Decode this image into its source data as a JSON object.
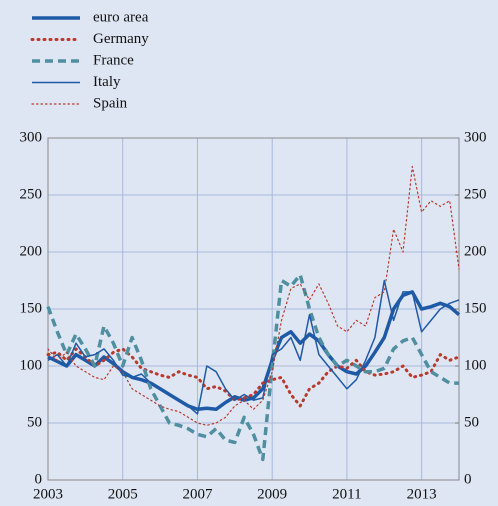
{
  "chart_data": {
    "type": "line",
    "x": [
      2003.0,
      2003.25,
      2003.5,
      2003.75,
      2004.0,
      2004.25,
      2004.5,
      2004.75,
      2005.0,
      2005.25,
      2005.5,
      2005.75,
      2006.0,
      2006.25,
      2006.5,
      2006.75,
      2007.0,
      2007.25,
      2007.5,
      2007.75,
      2008.0,
      2008.25,
      2008.5,
      2008.75,
      2009.0,
      2009.25,
      2009.5,
      2009.75,
      2010.0,
      2010.25,
      2010.5,
      2010.75,
      2011.0,
      2011.25,
      2011.5,
      2011.75,
      2012.0,
      2012.25,
      2012.5,
      2012.75,
      2013.0,
      2013.25,
      2013.5,
      2013.75,
      2014.0
    ],
    "series": [
      {
        "name": "euro area",
        "color": "#1f5aa6",
        "values": [
          108,
          104,
          100,
          110,
          105,
          100,
          108,
          102,
          95,
          90,
          88,
          85,
          80,
          75,
          70,
          65,
          62,
          63,
          62,
          68,
          73,
          70,
          72,
          80,
          105,
          125,
          130,
          120,
          128,
          122,
          110,
          100,
          95,
          93,
          100,
          112,
          125,
          150,
          162,
          165,
          150,
          152,
          155,
          152,
          145
        ]
      },
      {
        "name": "Germany",
        "color": "#b83a2e",
        "values": [
          110,
          112,
          105,
          115,
          108,
          100,
          105,
          112,
          115,
          108,
          98,
          95,
          92,
          90,
          95,
          92,
          90,
          80,
          82,
          78,
          70,
          72,
          75,
          85,
          88,
          90,
          75,
          65,
          80,
          85,
          95,
          100,
          98,
          105,
          95,
          92,
          93,
          95,
          100,
          90,
          92,
          95,
          110,
          105,
          108
        ]
      },
      {
        "name": "France",
        "color": "#4f8fa0",
        "values": [
          152,
          130,
          110,
          128,
          115,
          100,
          135,
          120,
          100,
          125,
          105,
          80,
          65,
          50,
          48,
          45,
          40,
          38,
          45,
          35,
          33,
          55,
          40,
          18,
          100,
          175,
          170,
          180,
          150,
          125,
          110,
          100,
          105,
          100,
          95,
          95,
          98,
          115,
          122,
          125,
          110,
          95,
          90,
          85,
          85
        ]
      },
      {
        "name": "Italy",
        "color": "#1f5aa6",
        "values": [
          105,
          110,
          100,
          120,
          108,
          110,
          115,
          105,
          92,
          90,
          93,
          85,
          80,
          75,
          70,
          65,
          58,
          100,
          95,
          80,
          70,
          75,
          70,
          72,
          110,
          115,
          125,
          105,
          145,
          110,
          100,
          90,
          80,
          88,
          105,
          125,
          175,
          140,
          165,
          165,
          130,
          140,
          150,
          155,
          158
        ]
      },
      {
        "name": "Spain",
        "color": "#b83a2e",
        "values": [
          115,
          105,
          112,
          100,
          95,
          90,
          88,
          100,
          95,
          80,
          75,
          70,
          65,
          62,
          60,
          55,
          50,
          48,
          50,
          55,
          65,
          70,
          62,
          70,
          95,
          140,
          168,
          172,
          158,
          172,
          155,
          135,
          130,
          140,
          135,
          160,
          165,
          220,
          200,
          275,
          235,
          245,
          240,
          245,
          185
        ]
      }
    ],
    "xlim": [
      2003,
      2014
    ],
    "xticks": [
      2003,
      2005,
      2007,
      2009,
      2011,
      2013
    ],
    "ylim": [
      0,
      300
    ],
    "yticks": [
      0,
      50,
      100,
      150,
      200,
      250,
      300
    ],
    "y2lim": [
      0,
      300
    ],
    "y2ticks": [
      0,
      50,
      100,
      150,
      200,
      250,
      300
    ],
    "grid": true,
    "legend": "top-left"
  }
}
